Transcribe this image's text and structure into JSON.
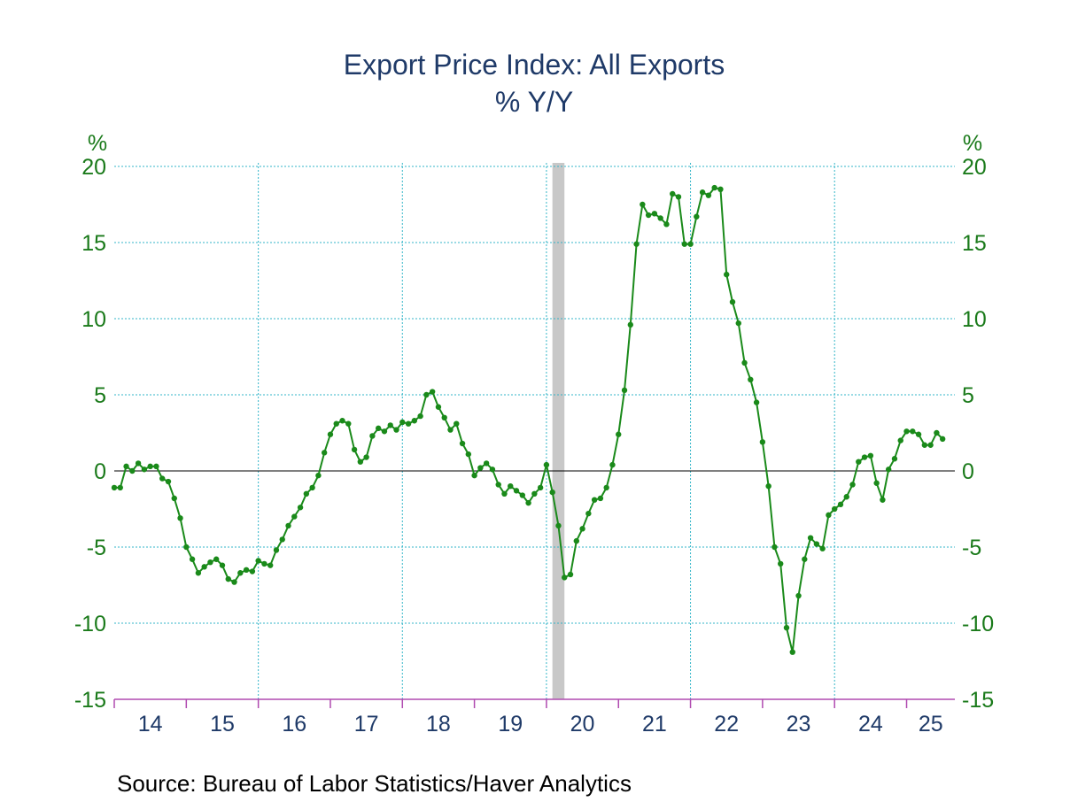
{
  "chart_data": {
    "type": "line",
    "title": "Export Price Index: All Exports",
    "subtitle": "% Y/Y",
    "ylabel_left": "%",
    "ylabel_right": "%",
    "ylim": [
      -15,
      20
    ],
    "yticks": [
      20,
      15,
      10,
      5,
      0,
      -5,
      -10,
      -15
    ],
    "ytick_labels": [
      "20",
      "15",
      "10",
      "5",
      "0",
      "-5",
      "-10",
      "-15"
    ],
    "xlim": [
      2014.0,
      2025.67
    ],
    "xticks": [
      "14",
      "15",
      "16",
      "17",
      "18",
      "19",
      "20",
      "21",
      "22",
      "23",
      "24",
      "25"
    ],
    "grid": true,
    "recession_shading": [
      [
        2020.083,
        2020.25
      ]
    ],
    "source": "Source:  Bureau of Labor Statistics/Haver Analytics",
    "colors": {
      "line": "#1a8a1a",
      "title": "#1f3a68",
      "tick_labels": "#1a7a1a",
      "grid": "#33b5c8",
      "recession": "#c8c8c8",
      "axis_ticks": "#b04ab0"
    },
    "series": [
      {
        "start": "2014-01",
        "values": [
          -1.1,
          -1.1,
          0.3,
          0.0,
          0.5,
          0.1,
          0.3,
          0.3,
          -0.5,
          -0.7,
          -1.8,
          -3.1,
          -5.0,
          -5.8,
          -6.7,
          -6.3,
          -6.0,
          -5.8,
          -6.2,
          -7.1,
          -7.3,
          -6.7,
          -6.5,
          -6.6,
          -5.9,
          -6.1,
          -6.2,
          -5.2,
          -4.5,
          -3.6,
          -3.0,
          -2.4,
          -1.5,
          -1.1,
          -0.3,
          1.2,
          2.4,
          3.1,
          3.3,
          3.1,
          1.4,
          0.6,
          0.9,
          2.3,
          2.8,
          2.6,
          3.0,
          2.7,
          3.2,
          3.1,
          3.3,
          3.6,
          5.0,
          5.2,
          4.2,
          3.5,
          2.7,
          3.1,
          1.8,
          1.1,
          -0.3,
          0.2,
          0.5,
          0.1,
          -0.9,
          -1.5,
          -1.0,
          -1.3,
          -1.6,
          -2.1,
          -1.5,
          -1.1,
          0.4,
          -1.4,
          -3.6,
          -7.0,
          -6.8,
          -4.6,
          -3.8,
          -2.8,
          -1.9,
          -1.8,
          -1.1,
          0.4,
          2.4,
          5.3,
          9.6,
          14.9,
          17.5,
          16.8,
          16.9,
          16.6,
          16.2,
          18.2,
          18.0,
          14.9,
          14.9,
          16.7,
          18.3,
          18.1,
          18.6,
          18.5,
          12.9,
          11.1,
          9.7,
          7.1,
          6.0,
          4.5,
          1.9,
          -1.0,
          -5.0,
          -6.1,
          -10.3,
          -11.9,
          -8.2,
          -5.8,
          -4.4,
          -4.8,
          -5.1,
          -2.9,
          -2.5,
          -2.2,
          -1.7,
          -0.9,
          0.6,
          0.9,
          1.0,
          -0.8,
          -1.9,
          0.1,
          0.8,
          2.0,
          2.6,
          2.6,
          2.4,
          1.7,
          1.7,
          2.5,
          2.1
        ]
      }
    ]
  }
}
